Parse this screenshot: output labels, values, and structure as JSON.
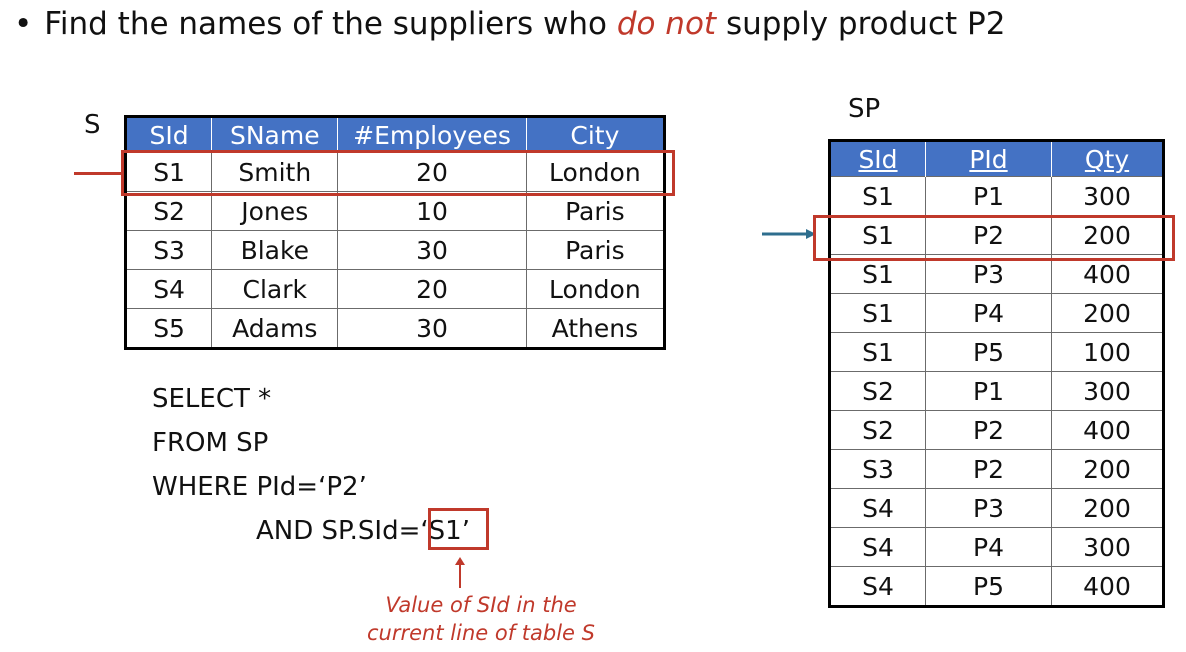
{
  "title": {
    "bullet": "•",
    "before": "Find the names of the suppliers who ",
    "emphasis": "do not",
    "after": " supply product P2"
  },
  "table_s": {
    "name": "S",
    "columns": [
      "SId",
      "SName",
      "#Employees",
      "City"
    ],
    "rows": [
      [
        "S1",
        "Smith",
        "20",
        "London"
      ],
      [
        "S2",
        "Jones",
        "10",
        "Paris"
      ],
      [
        "S3",
        "Blake",
        "30",
        "Paris"
      ],
      [
        "S4",
        "Clark",
        "20",
        "London"
      ],
      [
        "S5",
        "Adams",
        "30",
        "Athens"
      ]
    ]
  },
  "table_sp": {
    "name": "SP",
    "columns": [
      "SId",
      "PId",
      "Qty"
    ],
    "rows": [
      [
        "S1",
        "P1",
        "300"
      ],
      [
        "S1",
        "P2",
        "200"
      ],
      [
        "S1",
        "P3",
        "400"
      ],
      [
        "S1",
        "P4",
        "200"
      ],
      [
        "S1",
        "P5",
        "100"
      ],
      [
        "S2",
        "P1",
        "300"
      ],
      [
        "S2",
        "P2",
        "400"
      ],
      [
        "S3",
        "P2",
        "200"
      ],
      [
        "S4",
        "P3",
        "200"
      ],
      [
        "S4",
        "P4",
        "300"
      ],
      [
        "S4",
        "P5",
        "400"
      ]
    ]
  },
  "sql": {
    "line1": "SELECT *",
    "line2": "FROM SP",
    "line3": "WHERE PId=‘P2’",
    "line4_prefix": "AND SP.SId=",
    "line4_value": "‘S1’"
  },
  "note": {
    "line1": "Value of SId in the",
    "line2": "current line of table S"
  },
  "colors": {
    "header_blue": "#4472c4",
    "highlight_red": "#c0392b",
    "arrow_blue": "#2e6e8e"
  }
}
